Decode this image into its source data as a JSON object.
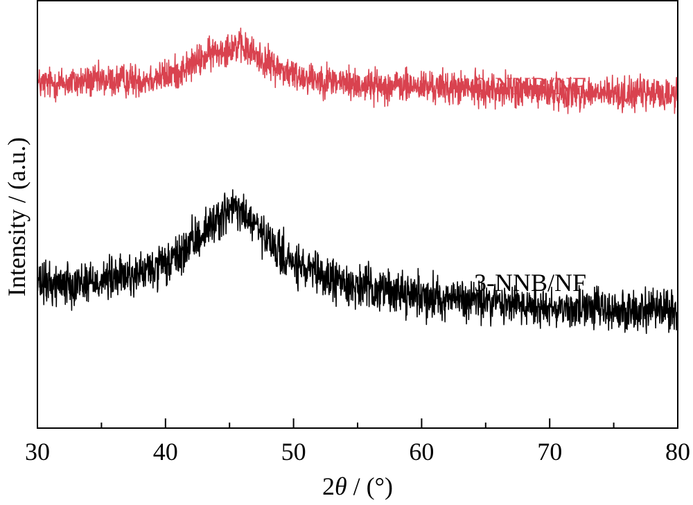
{
  "chart_data": {
    "type": "line",
    "xlabel_prefix": "2",
    "xlabel_symbol": "θ",
    "xlabel_suffix": " / (°)",
    "ylabel": "Intensity / (a.u.)",
    "xlim": [
      30,
      80
    ],
    "ylim": [
      0,
      100
    ],
    "x_ticks_major": [
      30,
      40,
      50,
      60,
      70,
      80
    ],
    "x_tick_labels": [
      "30",
      "40",
      "50",
      "60",
      "70",
      "80"
    ],
    "x_ticks_minor": [
      35,
      45,
      55,
      65,
      75
    ],
    "y_ticks_shown": false,
    "grid": false,
    "series": [
      {
        "name": "0-NNB/NF",
        "color": "#d9424f",
        "envelope": {
          "x": [
            30,
            32,
            34,
            36,
            38,
            40,
            41,
            42,
            43,
            44,
            45,
            45.5,
            46,
            47,
            48,
            50,
            52,
            55,
            58,
            60,
            65,
            70,
            75,
            80
          ],
          "y": [
            80.4,
            80.6,
            81.0,
            81.1,
            81.4,
            82.2,
            83.2,
            84.8,
            86.5,
            88.0,
            89.1,
            89.4,
            88.8,
            87.3,
            85.2,
            82.5,
            81.6,
            80.2,
            79.9,
            79.8,
            79.1,
            78.5,
            78.1,
            78.0
          ],
          "noise_amplitude": 3.6
        }
      },
      {
        "name": "3-NNB/NF",
        "color": "#000000",
        "envelope": {
          "x": [
            30,
            32,
            34,
            36,
            38,
            40,
            41,
            42,
            43,
            44,
            45,
            45.5,
            46,
            47,
            48,
            50,
            52,
            55,
            58,
            60,
            65,
            70,
            75,
            80
          ],
          "y": [
            33.4,
            33.9,
            34.2,
            35.0,
            36.1,
            38.0,
            40.1,
            42.9,
            45.9,
            48.8,
            50.8,
            51.1,
            50.1,
            47.3,
            43.3,
            38.2,
            35.4,
            33.1,
            31.9,
            31.0,
            29.5,
            28.3,
            27.6,
            27.1
          ],
          "noise_amplitude": 4.6
        }
      }
    ]
  }
}
